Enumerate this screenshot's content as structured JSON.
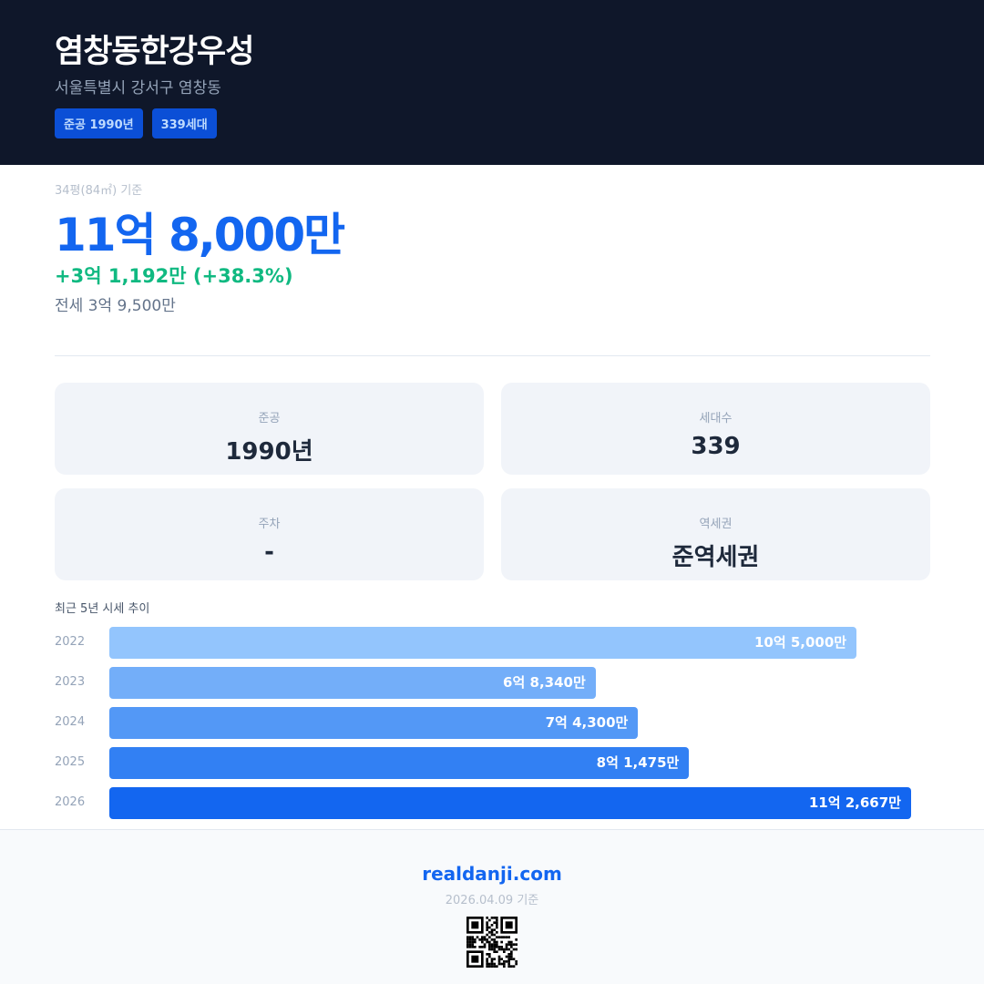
{
  "header": {
    "title": "염창동한강우성",
    "address": "서울특별시 강서구 염창동",
    "badges": [
      "준공 1990년",
      "339세대"
    ]
  },
  "price": {
    "basis": "34평(84㎡) 기준",
    "main": "11억 8,000만",
    "change": "+3억 1,192만 (+38.3%)",
    "jeonse": "전세 3억 9,500만"
  },
  "cards": [
    {
      "label": "준공",
      "value": "1990년"
    },
    {
      "label": "세대수",
      "value": "339"
    },
    {
      "label": "주차",
      "value": "-"
    },
    {
      "label": "역세권",
      "value": "준역세권"
    }
  ],
  "trend": {
    "title": "최근 5년 시세 추이",
    "rows": [
      {
        "year": "2022",
        "label": "10억 5,000만",
        "value": 105000,
        "color": "#93c5fd"
      },
      {
        "year": "2023",
        "label": "6억 8,340만",
        "value": 68340,
        "color": "#73aef9"
      },
      {
        "year": "2024",
        "label": "7억 4,300만",
        "value": 74300,
        "color": "#5398f6"
      },
      {
        "year": "2025",
        "label": "8억 1,475만",
        "value": 81475,
        "color": "#3280f3"
      },
      {
        "year": "2026",
        "label": "11억 2,667만",
        "value": 112667,
        "color": "#1366f0"
      }
    ]
  },
  "footer": {
    "site": "realdanji.com",
    "date": "2026.04.09 기준"
  }
}
